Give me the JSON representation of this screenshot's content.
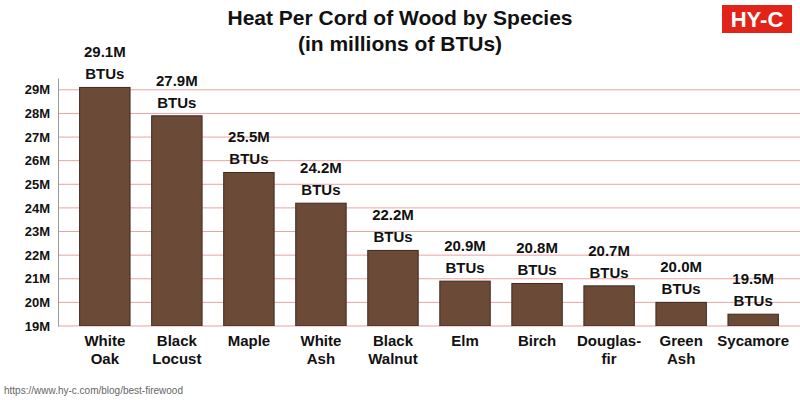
{
  "chart_data": {
    "type": "bar",
    "title": "Heat Per Cord of Wood by Species",
    "subtitle": "(in millions of BTUs)",
    "categories": [
      "White Oak",
      "Black Locust",
      "Maple",
      "White Ash",
      "Black Walnut",
      "Elm",
      "Birch",
      "Douglas-fir",
      "Green Ash",
      "Sycamore"
    ],
    "values": [
      29.1,
      27.9,
      25.5,
      24.2,
      22.2,
      20.9,
      20.8,
      20.7,
      20.0,
      19.5
    ],
    "value_labels": [
      "29.1M BTUs",
      "27.9M BTUs",
      "25.5M BTUs",
      "24.2M BTUs",
      "22.2M BTUs",
      "20.9M BTUs",
      "20.8M BTUs",
      "20.7M BTUs",
      "20.0M BTUs",
      "19.5M BTUs"
    ],
    "color": "#6b4a38",
    "ylim": [
      19,
      29.5
    ],
    "yticks": [
      {
        "value": 19,
        "label": "19M"
      },
      {
        "value": 20,
        "label": "20M"
      },
      {
        "value": 21,
        "label": "21M"
      },
      {
        "value": 22,
        "label": "22M"
      },
      {
        "value": 23,
        "label": "23M"
      },
      {
        "value": 24,
        "label": "24M"
      },
      {
        "value": 25,
        "label": "25M"
      },
      {
        "value": 26,
        "label": "26M"
      },
      {
        "value": 27,
        "label": "27M"
      },
      {
        "value": 28,
        "label": "28M"
      },
      {
        "value": 29,
        "label": "29M"
      }
    ],
    "grid": true,
    "data_labels": true,
    "annotations": [
      "HY-C",
      "https://www.hy-c.com/blog/best-firewood"
    ]
  }
}
